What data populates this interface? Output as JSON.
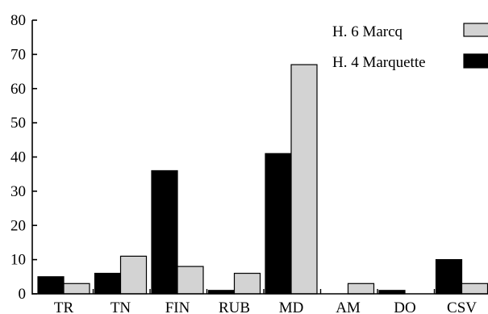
{
  "chart_data": {
    "type": "bar",
    "categories": [
      "TR",
      "TN",
      "FIN",
      "RUB",
      "MD",
      "AM",
      "DO",
      "CSV"
    ],
    "series": [
      {
        "name": "H. 4 Marquette",
        "color": "#000000",
        "values": [
          5,
          6,
          36,
          1,
          41,
          0,
          1,
          10
        ]
      },
      {
        "name": "H. 6 Marcq",
        "color": "#d3d3d3",
        "values": [
          3,
          11,
          8,
          6,
          67,
          3,
          0,
          3
        ]
      }
    ],
    "yticks": [
      0,
      10,
      20,
      30,
      40,
      50,
      60,
      70,
      80
    ],
    "ylim": [
      0,
      80
    ],
    "title": "",
    "xlabel": "",
    "ylabel": "",
    "grid": false,
    "legend_position": "top-right"
  }
}
